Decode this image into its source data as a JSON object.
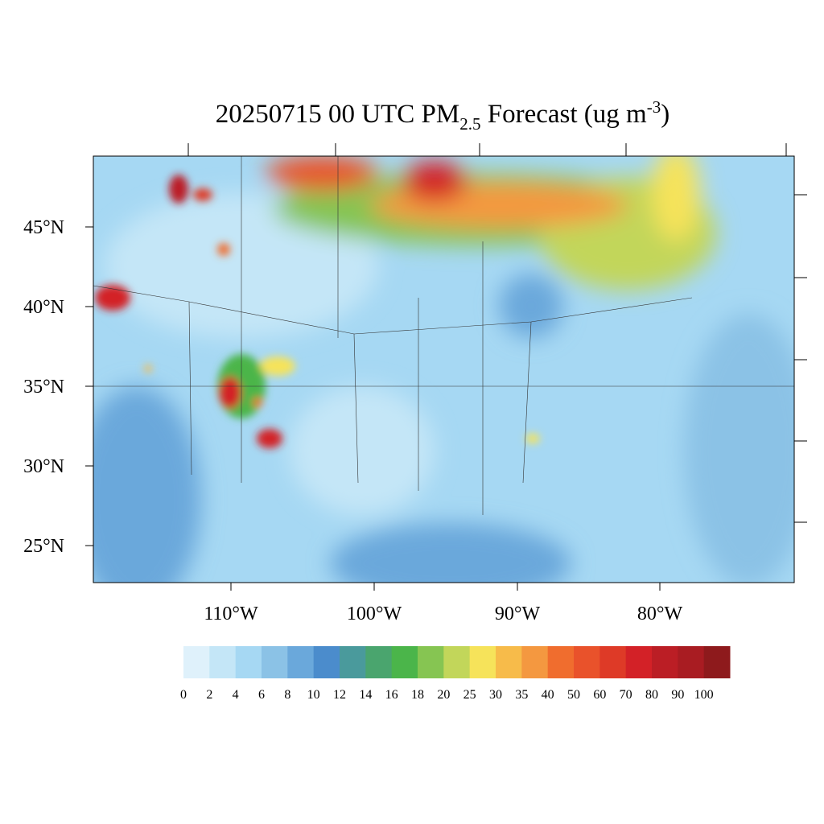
{
  "title": {
    "parts": [
      "20250715 00 UTC PM",
      "2.5",
      " Forecast (ug m",
      "-3",
      ")"
    ]
  },
  "map": {
    "lat_labels": [
      "45°N",
      "40°N",
      "35°N",
      "30°N",
      "25°N"
    ],
    "lon_labels": [
      "110°W",
      "100°W",
      "90°W",
      "80°W"
    ]
  },
  "colorbar": {
    "labels": [
      0,
      2,
      4,
      6,
      8,
      10,
      12,
      14,
      16,
      18,
      20,
      25,
      30,
      35,
      40,
      50,
      60,
      70,
      80,
      90,
      100
    ],
    "colors": [
      "#dff1fb",
      "#c4e6f7",
      "#a6d8f3",
      "#8bc2e6",
      "#6aa8db",
      "#4b8ccc",
      "#4a9a9c",
      "#4aa56e",
      "#4bb54a",
      "#86c552",
      "#c2d65a",
      "#f6e35a",
      "#f7bb4a",
      "#f49840",
      "#f06d2e",
      "#e9522b",
      "#de3a27",
      "#d32127",
      "#bb1e25",
      "#a91c22",
      "#8e1a1c"
    ]
  }
}
